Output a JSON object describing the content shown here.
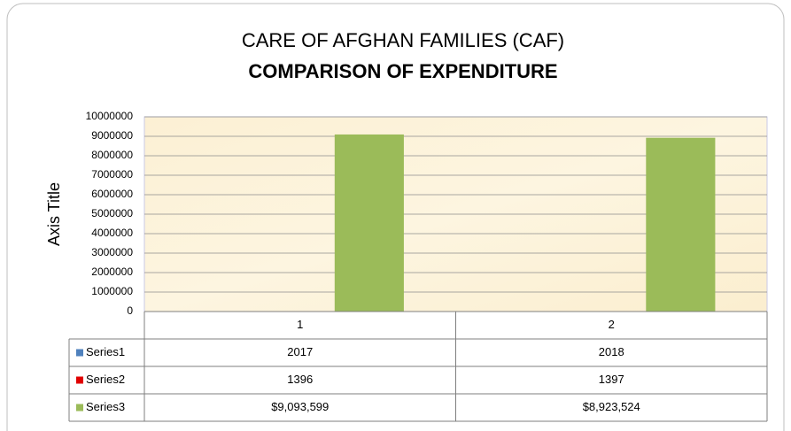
{
  "chart_data": {
    "type": "bar",
    "title": "CARE OF AFGHAN FAMILIES (CAF)",
    "subtitle": "COMPARISON OF EXPENDITURE",
    "y_label": "Axis Title",
    "categories": [
      "1",
      "2"
    ],
    "series": [
      {
        "name": "Series1",
        "color": "#4f81bd",
        "values": [
          2017,
          2018
        ]
      },
      {
        "name": "Series2",
        "color": "#e00000",
        "values": [
          1396,
          1397
        ]
      },
      {
        "name": "Series3",
        "color": "#9bbb59",
        "values": [
          9093599,
          8923524
        ],
        "value_labels": [
          "$9,093,599",
          "$8,923,524"
        ]
      }
    ],
    "ylim": [
      0,
      10000000
    ],
    "yticks": [
      0,
      1000000,
      2000000,
      3000000,
      4000000,
      5000000,
      6000000,
      7000000,
      8000000,
      9000000,
      10000000
    ],
    "grid": true,
    "data_table": true
  }
}
